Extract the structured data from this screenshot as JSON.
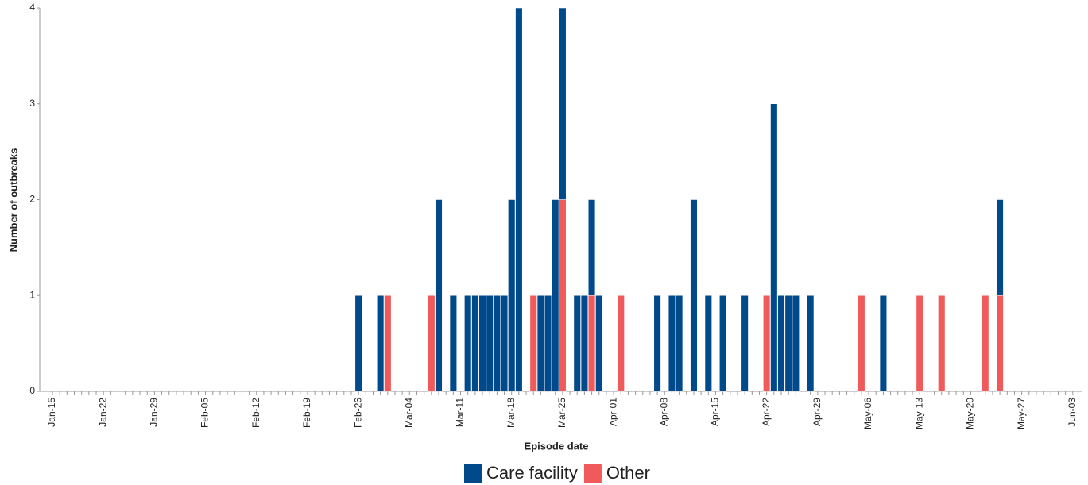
{
  "chart_data": {
    "type": "stacked_bar",
    "x_label": "Episode date",
    "y_label": "Number of outbreaks",
    "categories": [
      "Jan-15",
      null,
      null,
      null,
      null,
      null,
      null,
      "Jan-22",
      null,
      null,
      null,
      null,
      null,
      null,
      "Jan-29",
      null,
      null,
      null,
      null,
      null,
      null,
      "Feb-05",
      null,
      null,
      null,
      null,
      null,
      null,
      "Feb-12",
      null,
      null,
      null,
      null,
      null,
      null,
      "Feb-19",
      null,
      null,
      null,
      null,
      null,
      null,
      "Feb-26",
      null,
      null,
      null,
      null,
      null,
      null,
      "Mar-04",
      null,
      null,
      null,
      null,
      null,
      null,
      "Mar-11",
      null,
      null,
      null,
      null,
      null,
      null,
      "Mar-18",
      null,
      null,
      null,
      null,
      null,
      null,
      "Mar-25",
      null,
      null,
      null,
      null,
      null,
      null,
      "Apr-01",
      null,
      null,
      null,
      null,
      null,
      null,
      "Apr-08",
      null,
      null,
      null,
      null,
      null,
      null,
      "Apr-15",
      null,
      null,
      null,
      null,
      null,
      null,
      "Apr-22",
      null,
      null,
      null,
      null,
      null,
      null,
      "Apr-29",
      null,
      null,
      null,
      null,
      null,
      null,
      "May-06",
      null,
      null,
      null,
      null,
      null,
      null,
      "May-13",
      null,
      null,
      null,
      null,
      null,
      null,
      "May-20",
      null,
      null,
      null,
      null,
      null,
      null,
      "May-27",
      null,
      null,
      null,
      null,
      null,
      null,
      "Jun-03"
    ],
    "series": [
      {
        "name": "Care facility",
        "color": "#004a8c",
        "values": [
          0,
          0,
          0,
          0,
          0,
          0,
          0,
          0,
          0,
          0,
          0,
          0,
          0,
          0,
          0,
          0,
          0,
          0,
          0,
          0,
          0,
          0,
          0,
          0,
          0,
          0,
          0,
          0,
          0,
          0,
          0,
          0,
          0,
          0,
          0,
          0,
          0,
          0,
          0,
          0,
          0,
          0,
          1,
          0,
          0,
          1,
          0,
          0,
          0,
          0,
          0,
          0,
          0,
          2,
          0,
          1,
          0,
          1,
          1,
          1,
          1,
          1,
          1,
          2,
          4,
          0,
          0,
          1,
          1,
          2,
          2,
          0,
          1,
          1,
          1,
          1,
          0,
          0,
          0,
          0,
          0,
          0,
          0,
          1,
          0,
          1,
          1,
          0,
          2,
          0,
          1,
          0,
          1,
          0,
          0,
          1,
          0,
          0,
          0,
          3,
          1,
          1,
          1,
          0,
          1,
          0,
          0,
          0,
          0,
          0,
          0,
          0,
          0,
          0,
          1,
          0,
          0,
          0,
          0,
          0,
          0,
          0,
          0,
          0,
          0,
          0,
          0,
          0,
          0,
          0,
          1,
          0,
          0,
          0,
          0,
          0,
          0,
          0,
          0,
          0,
          0
        ]
      },
      {
        "name": "Other",
        "color": "#f05a5a",
        "values": [
          0,
          0,
          0,
          0,
          0,
          0,
          0,
          0,
          0,
          0,
          0,
          0,
          0,
          0,
          0,
          0,
          0,
          0,
          0,
          0,
          0,
          0,
          0,
          0,
          0,
          0,
          0,
          0,
          0,
          0,
          0,
          0,
          0,
          0,
          0,
          0,
          0,
          0,
          0,
          0,
          0,
          0,
          0,
          0,
          0,
          0,
          1,
          0,
          0,
          0,
          0,
          0,
          1,
          0,
          0,
          0,
          0,
          0,
          0,
          0,
          0,
          0,
          0,
          0,
          0,
          0,
          1,
          0,
          0,
          0,
          2,
          0,
          0,
          0,
          1,
          0,
          0,
          0,
          1,
          0,
          0,
          0,
          0,
          0,
          0,
          0,
          0,
          0,
          0,
          0,
          0,
          0,
          0,
          0,
          0,
          0,
          0,
          0,
          1,
          0,
          0,
          0,
          0,
          0,
          0,
          0,
          0,
          0,
          0,
          0,
          0,
          1,
          0,
          0,
          0,
          0,
          0,
          0,
          0,
          1,
          0,
          0,
          1,
          0,
          0,
          0,
          0,
          0,
          1,
          0,
          1,
          0,
          0,
          0,
          0,
          0,
          0,
          0,
          0,
          0,
          0
        ]
      }
    ],
    "ylim": [
      0,
      4
    ],
    "yticks": [
      0,
      1,
      2,
      3,
      4
    ]
  }
}
